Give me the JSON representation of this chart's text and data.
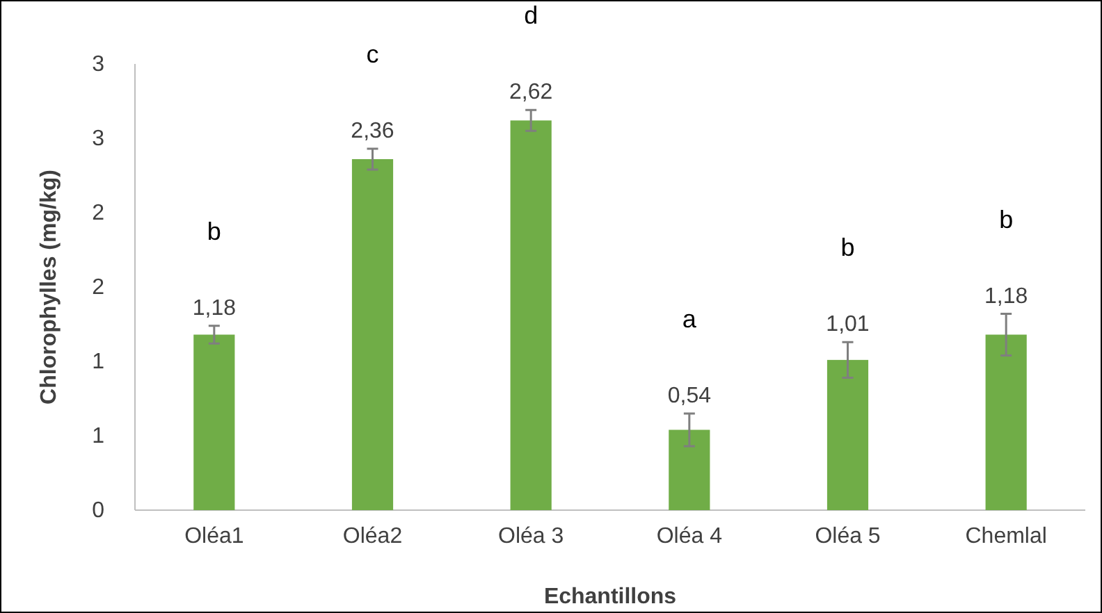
{
  "chart_data": {
    "type": "bar",
    "xlabel": "Echantillons",
    "ylabel": "Chlorophylles (mg/kg)",
    "categories": [
      "Oléa1",
      "Oléa2",
      "Oléa 3",
      "Oléa 4",
      "Oléa 5",
      "Chemlal"
    ],
    "values": [
      1.18,
      2.36,
      2.62,
      0.54,
      1.01,
      1.18
    ],
    "value_labels": [
      "1,18",
      "2,36",
      "2,62",
      "0,54",
      "1,01",
      "1,18"
    ],
    "errors": [
      0.06,
      0.07,
      0.07,
      0.11,
      0.12,
      0.14
    ],
    "color": "#70ad47",
    "ylim": [
      0,
      3
    ],
    "yticks": [
      0,
      {
        "value": 0.5,
        "label": "1"
      },
      {
        "value": 1,
        "label": "1"
      },
      {
        "value": 1.5,
        "label": "2"
      },
      {
        "value": 2,
        "label": "2"
      },
      {
        "value": 2.5,
        "label": "3"
      },
      {
        "value": 3,
        "label": "3"
      }
    ],
    "grid": false,
    "annotations": [
      "b",
      "c",
      "d",
      "a",
      "b",
      "b"
    ]
  }
}
